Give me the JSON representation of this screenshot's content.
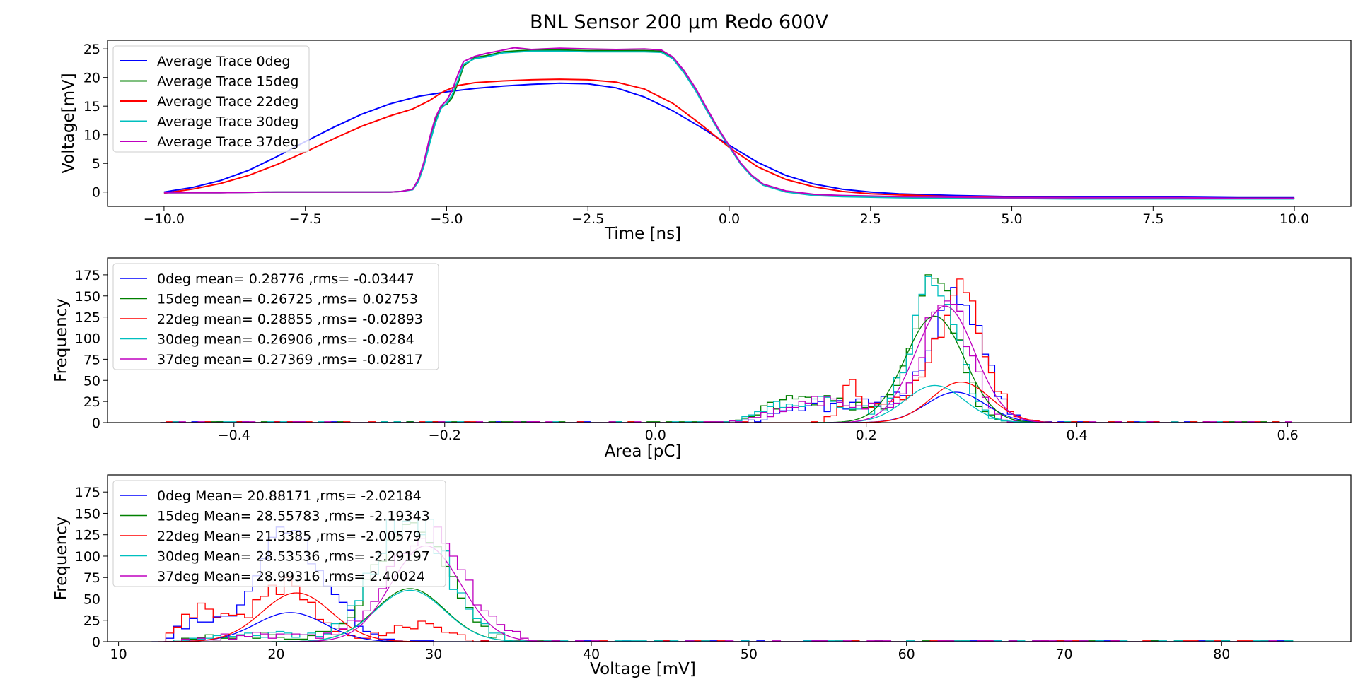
{
  "figure": {
    "title": "BNL Sensor 200 µm Redo 600V"
  },
  "colors": {
    "0deg": "#0000ff",
    "15deg": "#008000",
    "22deg": "#ff0000",
    "30deg": "#00bfbf",
    "37deg": "#bf00bf"
  },
  "chart_data": [
    {
      "type": "line",
      "title": "",
      "xlabel": "Time [ns]",
      "ylabel": "Voltage[mV]",
      "xlim": [
        -11.0,
        11.0
      ],
      "ylim": [
        -2.5,
        26.5
      ],
      "xticks": [
        -10.0,
        -7.5,
        -5.0,
        -2.5,
        0.0,
        2.5,
        5.0,
        7.5,
        10.0
      ],
      "xtick_labels": [
        "−10.0",
        "−7.5",
        "−5.0",
        "−2.5",
        "0.0",
        "2.5",
        "5.0",
        "7.5",
        "10.0"
      ],
      "yticks": [
        0,
        5,
        10,
        15,
        20,
        25
      ],
      "ytick_labels": [
        "0",
        "5",
        "10",
        "15",
        "20",
        "25"
      ],
      "legend_position": "upper-left",
      "series": [
        {
          "name": "Average Trace 0deg",
          "color_key": "0deg",
          "x": [
            -10,
            -9.5,
            -9,
            -8.5,
            -8,
            -7.5,
            -7,
            -6.5,
            -6,
            -5.5,
            -5,
            -4.5,
            -4,
            -3.5,
            -3,
            -2.5,
            -2,
            -1.5,
            -1,
            -0.5,
            0,
            0.5,
            1,
            1.5,
            2,
            2.5,
            3,
            4,
            5,
            6,
            7,
            8,
            9,
            10
          ],
          "y": [
            0,
            0.8,
            2,
            3.8,
            6.2,
            8.8,
            11.3,
            13.6,
            15.4,
            16.7,
            17.5,
            18.1,
            18.5,
            18.8,
            19,
            18.9,
            18.2,
            16.6,
            14.2,
            11.3,
            8.2,
            5.2,
            2.9,
            1.4,
            0.5,
            0,
            -0.3,
            -0.6,
            -0.8,
            -0.8,
            -0.9,
            -0.9,
            -1,
            -1
          ]
        },
        {
          "name": "Average Trace 15deg",
          "color_key": "15deg",
          "x": [
            -10,
            -9,
            -8,
            -7,
            -6,
            -5.8,
            -5.6,
            -5.5,
            -5.4,
            -5.3,
            -5.2,
            -5.1,
            -5,
            -4.9,
            -4.8,
            -4.7,
            -4.5,
            -4.3,
            -4,
            -3.5,
            -3,
            -2.5,
            -2,
            -1.5,
            -1.2,
            -1,
            -0.8,
            -0.6,
            -0.4,
            -0.2,
            0,
            0.2,
            0.4,
            0.6,
            1,
            1.5,
            2,
            2.5,
            3,
            4,
            5,
            6,
            7,
            8,
            9,
            10
          ],
          "y": [
            -0.1,
            -0.1,
            0,
            0,
            0,
            0.1,
            0.5,
            2,
            5,
            9,
            12.5,
            15,
            15.3,
            16.5,
            19,
            22,
            23.5,
            23.8,
            24.5,
            24.8,
            24.8,
            24.7,
            24.7,
            24.7,
            24.6,
            23.5,
            21,
            18,
            14.5,
            11,
            8,
            5,
            2.8,
            1.3,
            0.1,
            -0.5,
            -0.7,
            -0.8,
            -0.9,
            -1,
            -1,
            -1.1,
            -1.1,
            -1.1,
            -1.1,
            -1.1
          ]
        },
        {
          "name": "Average Trace 22deg",
          "color_key": "22deg",
          "x": [
            -10,
            -9.5,
            -9,
            -8.5,
            -8,
            -7.5,
            -7,
            -6.5,
            -6,
            -5.6,
            -5.3,
            -5.1,
            -5,
            -4.8,
            -4.5,
            -4,
            -3.5,
            -3,
            -2.5,
            -2,
            -1.5,
            -1,
            -0.5,
            0,
            0.5,
            1,
            1.5,
            2,
            2.5,
            3,
            4,
            5,
            6,
            7,
            8,
            9,
            10
          ],
          "y": [
            -0.2,
            0.5,
            1.5,
            2.9,
            4.8,
            7,
            9.3,
            11.5,
            13.3,
            14.5,
            16,
            17.3,
            17.8,
            18.6,
            19.1,
            19.4,
            19.6,
            19.7,
            19.6,
            19.2,
            18,
            15.5,
            11.8,
            7.8,
            4.4,
            2.2,
            0.9,
            0.1,
            -0.3,
            -0.5,
            -0.8,
            -1,
            -1,
            -1.1,
            -1.1,
            -1.1,
            -1.1
          ]
        },
        {
          "name": "Average Trace 30deg",
          "color_key": "30deg",
          "x": [
            -10,
            -9,
            -8,
            -7,
            -6,
            -5.8,
            -5.6,
            -5.5,
            -5.4,
            -5.3,
            -5.2,
            -5.1,
            -5,
            -4.9,
            -4.8,
            -4.7,
            -4.5,
            -4.3,
            -4,
            -3.5,
            -3,
            -2.5,
            -2,
            -1.5,
            -1.2,
            -1,
            -0.8,
            -0.6,
            -0.4,
            -0.2,
            0,
            0.2,
            0.4,
            0.6,
            1,
            1.5,
            2,
            2.5,
            3,
            4,
            5,
            6,
            7,
            8,
            9,
            10
          ],
          "y": [
            -0.1,
            -0.1,
            0,
            0,
            0,
            0.1,
            0.4,
            1.8,
            4.6,
            8.5,
            12,
            14.6,
            15.5,
            17,
            19.5,
            22.3,
            23.3,
            23.6,
            24.3,
            24.6,
            24.6,
            24.5,
            24.5,
            24.5,
            24.4,
            23.3,
            20.8,
            17.8,
            14.3,
            10.9,
            7.9,
            4.9,
            2.7,
            1.2,
            0,
            -0.6,
            -0.8,
            -0.9,
            -1,
            -1.1,
            -1.1,
            -1.2,
            -1.2,
            -1.2,
            -1.2,
            -1.2
          ]
        },
        {
          "name": "Average Trace 37deg",
          "color_key": "37deg",
          "x": [
            -10,
            -9,
            -8,
            -7,
            -6,
            -5.8,
            -5.6,
            -5.5,
            -5.4,
            -5.3,
            -5.2,
            -5.1,
            -5,
            -4.9,
            -4.8,
            -4.7,
            -4.5,
            -4.3,
            -4,
            -3.8,
            -3.5,
            -3,
            -2.5,
            -2,
            -1.5,
            -1.2,
            -1,
            -0.8,
            -0.6,
            -0.4,
            -0.2,
            0,
            0.2,
            0.4,
            0.6,
            1,
            1.5,
            2,
            2.5,
            3,
            4,
            5,
            6,
            7,
            8,
            9,
            10
          ],
          "y": [
            -0.1,
            -0.1,
            0,
            0,
            0,
            0.1,
            0.5,
            2.2,
            5.3,
            9.5,
            13,
            15,
            16,
            17.8,
            20.5,
            22.8,
            23.7,
            24.2,
            24.8,
            25.2,
            24.9,
            25.1,
            25,
            24.9,
            25,
            24.8,
            23.6,
            21.2,
            18.2,
            14.7,
            11.2,
            8.1,
            5.1,
            2.9,
            1.4,
            0.2,
            -0.4,
            -0.6,
            -0.7,
            -0.8,
            -0.9,
            -1,
            -1,
            -1,
            -1,
            -1.1,
            -1.1
          ]
        }
      ]
    },
    {
      "type": "histogram",
      "title": "",
      "xlabel": "Area [pC]",
      "ylabel": "Frequency",
      "xlim": [
        -0.52,
        0.66
      ],
      "ylim": [
        0,
        195
      ],
      "xticks": [
        -0.4,
        -0.2,
        0.0,
        0.2,
        0.4,
        0.6
      ],
      "xtick_labels": [
        "−0.4",
        "−0.2",
        "0.0",
        "0.2",
        "0.4",
        "0.6"
      ],
      "yticks": [
        0,
        25,
        50,
        75,
        100,
        125,
        150,
        175
      ],
      "ytick_labels": [
        "0",
        "25",
        "50",
        "75",
        "100",
        "125",
        "150",
        "175"
      ],
      "legend_position": "upper-left",
      "bin_width": 0.006,
      "series": [
        {
          "name": "0deg mean= 0.28776 ,rms= -0.03447",
          "color_key": "0deg",
          "components": [
            [
              0.15,
              0.03,
              18
            ],
            [
              0.21,
              0.022,
              25
            ],
            [
              0.285,
              0.024,
              160
            ]
          ],
          "fit_amp": 36
        },
        {
          "name": "15deg mean= 0.26725 ,rms= 0.02753",
          "color_key": "15deg",
          "components": [
            [
              0.125,
              0.025,
              22
            ],
            [
              0.175,
              0.025,
              22
            ],
            [
              0.265,
              0.022,
              165
            ]
          ],
          "fit_amp": 126
        },
        {
          "name": "22deg mean= 0.28855 ,rms= -0.02893",
          "color_key": "22deg",
          "components": [
            [
              0.185,
              0.01,
              42
            ],
            [
              0.23,
              0.02,
              28
            ],
            [
              0.29,
              0.022,
              160
            ]
          ],
          "fit_amp": 48
        },
        {
          "name": "30deg mean= 0.26906 ,rms= -0.0284",
          "color_key": "30deg",
          "components": [
            [
              0.125,
              0.025,
              20
            ],
            [
              0.175,
              0.025,
              20
            ],
            [
              0.265,
              0.022,
              160
            ]
          ],
          "fit_amp": 44
        },
        {
          "name": "37deg mean= 0.27369 ,rms= -0.02817",
          "color_key": "37deg",
          "components": [
            [
              0.135,
              0.025,
              20
            ],
            [
              0.185,
              0.025,
              22
            ],
            [
              0.275,
              0.022,
              150
            ]
          ],
          "fit_amp": 138
        }
      ]
    },
    {
      "type": "histogram",
      "title": "",
      "xlabel": "Voltage [mV]",
      "ylabel": "Frequency",
      "xlim": [
        9.3,
        88.2
      ],
      "ylim": [
        0,
        195
      ],
      "xticks": [
        10,
        20,
        30,
        40,
        50,
        60,
        70,
        80
      ],
      "xtick_labels": [
        "10",
        "20",
        "30",
        "40",
        "50",
        "60",
        "70",
        "80"
      ],
      "yticks": [
        0,
        25,
        50,
        75,
        100,
        125,
        150,
        175
      ],
      "ytick_labels": [
        "0",
        "25",
        "50",
        "75",
        "100",
        "125",
        "150",
        "175"
      ],
      "legend_position": "upper-left",
      "bin_width": 0.5,
      "series": [
        {
          "name": "0deg Mean= 20.88171 ,rms= -2.02184",
          "color_key": "0deg",
          "components": [
            [
              15.5,
              1.5,
              25
            ],
            [
              20.5,
              1.6,
              140
            ],
            [
              24,
              1.5,
              30
            ]
          ],
          "fit_amp": 34
        },
        {
          "name": "15deg Mean= 28.55783 ,rms= -2.19343",
          "color_key": "15deg",
          "components": [
            [
              19,
              3,
              8
            ],
            [
              28.5,
              2.2,
              145
            ]
          ],
          "fit_amp": 62
        },
        {
          "name": "22deg Mean= 21.3385 ,rms= -2.00579",
          "color_key": "22deg",
          "components": [
            [
              15,
              1.4,
              35
            ],
            [
              20.5,
              2,
              65
            ],
            [
              29,
              1.8,
              22
            ]
          ],
          "fit_amp": 57
        },
        {
          "name": "30deg Mean= 28.53536 ,rms= -2.29197",
          "color_key": "30deg",
          "components": [
            [
              19,
              3,
              8
            ],
            [
              28.5,
              2.3,
              150
            ]
          ],
          "fit_amp": 60
        },
        {
          "name": "37deg Mean= 28.99316 ,rms= 2.40024",
          "color_key": "37deg",
          "components": [
            [
              19,
              3,
              7
            ],
            [
              29.5,
              2.5,
              125
            ]
          ],
          "fit_amp": 112
        }
      ]
    }
  ]
}
